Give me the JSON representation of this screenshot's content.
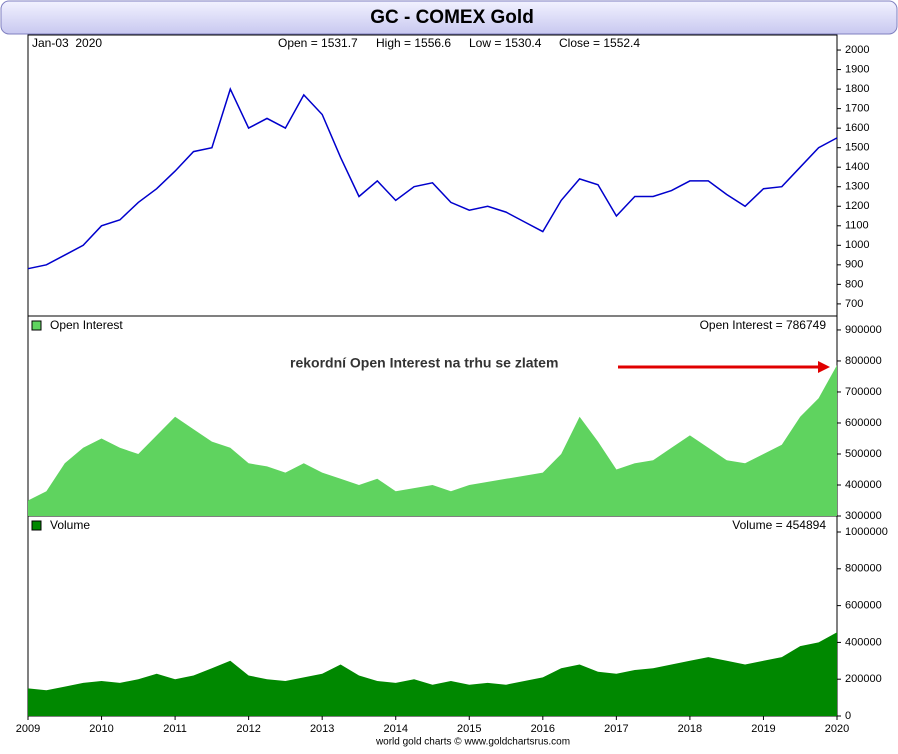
{
  "chart_data": [
    {
      "type": "line",
      "title": "GC - COMEX Gold",
      "info": [
        "Jan-03  2020",
        "Open = 1531.7",
        "High = 1556.6",
        "Low = 1530.4",
        "Close = 1552.4"
      ],
      "x": [
        2009,
        2009.25,
        2009.5,
        2009.75,
        2010,
        2010.25,
        2010.5,
        2010.75,
        2011,
        2011.25,
        2011.5,
        2011.75,
        2012,
        2012.25,
        2012.5,
        2012.75,
        2013,
        2013.25,
        2013.5,
        2013.75,
        2014,
        2014.25,
        2014.5,
        2014.75,
        2015,
        2015.25,
        2015.5,
        2015.75,
        2016,
        2016.25,
        2016.5,
        2016.75,
        2017,
        2017.25,
        2017.5,
        2017.75,
        2018,
        2018.25,
        2018.5,
        2018.75,
        2019,
        2019.25,
        2019.5,
        2019.75,
        2020
      ],
      "series": [
        {
          "name": "Gold",
          "color": "#0000cc",
          "values": [
            880,
            900,
            950,
            1000,
            1100,
            1130,
            1220,
            1290,
            1380,
            1480,
            1500,
            1800,
            1600,
            1650,
            1600,
            1770,
            1670,
            1450,
            1250,
            1330,
            1230,
            1300,
            1320,
            1220,
            1180,
            1200,
            1170,
            1120,
            1070,
            1230,
            1340,
            1310,
            1150,
            1250,
            1250,
            1280,
            1330,
            1330,
            1260,
            1200,
            1290,
            1300,
            1400,
            1500,
            1550
          ]
        }
      ],
      "xlim": [
        2009,
        2020
      ],
      "ylim": [
        638,
        2077
      ],
      "yticks": [
        700,
        800,
        900,
        1000,
        1100,
        1200,
        1300,
        1400,
        1500,
        1600,
        1700,
        1800,
        1900,
        2000
      ]
    },
    {
      "type": "area",
      "readout": "Open Interest = 786749",
      "annotation": "rekordní Open Interest na trhu se zlatem",
      "x": [
        2009,
        2009.25,
        2009.5,
        2009.75,
        2010,
        2010.25,
        2010.5,
        2010.75,
        2011,
        2011.25,
        2011.5,
        2011.75,
        2012,
        2012.25,
        2012.5,
        2012.75,
        2013,
        2013.25,
        2013.5,
        2013.75,
        2014,
        2014.25,
        2014.5,
        2014.75,
        2015,
        2015.25,
        2015.5,
        2015.75,
        2016,
        2016.25,
        2016.5,
        2016.75,
        2017,
        2017.25,
        2017.5,
        2017.75,
        2018,
        2018.25,
        2018.5,
        2018.75,
        2019,
        2019.25,
        2019.5,
        2019.75,
        2020
      ],
      "series": [
        {
          "name": "Open Interest",
          "color": "#5fd35f",
          "values": [
            350000,
            380000,
            470000,
            520000,
            550000,
            520000,
            500000,
            560000,
            620000,
            580000,
            540000,
            520000,
            470000,
            460000,
            440000,
            470000,
            440000,
            420000,
            400000,
            420000,
            380000,
            390000,
            400000,
            380000,
            400000,
            410000,
            420000,
            430000,
            440000,
            500000,
            620000,
            540000,
            450000,
            470000,
            480000,
            520000,
            560000,
            520000,
            480000,
            470000,
            500000,
            530000,
            620000,
            680000,
            786749
          ]
        }
      ],
      "xlim": [
        2009,
        2020
      ],
      "ylim": [
        300000,
        945000
      ],
      "yticks": [
        300000,
        400000,
        500000,
        600000,
        700000,
        800000,
        900000
      ]
    },
    {
      "type": "area",
      "readout": "Volume = 454894",
      "source": "world gold charts © www.goldchartsrus.com",
      "x": [
        2009,
        2009.25,
        2009.5,
        2009.75,
        2010,
        2010.25,
        2010.5,
        2010.75,
        2011,
        2011.25,
        2011.5,
        2011.75,
        2012,
        2012.25,
        2012.5,
        2012.75,
        2013,
        2013.25,
        2013.5,
        2013.75,
        2014,
        2014.25,
        2014.5,
        2014.75,
        2015,
        2015.25,
        2015.5,
        2015.75,
        2016,
        2016.25,
        2016.5,
        2016.75,
        2017,
        2017.25,
        2017.5,
        2017.75,
        2018,
        2018.25,
        2018.5,
        2018.75,
        2019,
        2019.25,
        2019.5,
        2019.75,
        2020
      ],
      "series": [
        {
          "name": "Volume",
          "color": "#008800",
          "values": [
            150000,
            140000,
            160000,
            180000,
            190000,
            180000,
            200000,
            230000,
            200000,
            220000,
            260000,
            300000,
            220000,
            200000,
            190000,
            210000,
            230000,
            280000,
            220000,
            190000,
            180000,
            200000,
            170000,
            190000,
            170000,
            180000,
            170000,
            190000,
            210000,
            260000,
            280000,
            240000,
            230000,
            250000,
            260000,
            280000,
            300000,
            320000,
            300000,
            280000,
            300000,
            320000,
            380000,
            400000,
            454894
          ]
        }
      ],
      "xlim": [
        2009,
        2020
      ],
      "ylim": [
        0,
        1087000
      ],
      "xticks": [
        2009,
        2010,
        2011,
        2012,
        2013,
        2014,
        2015,
        2016,
        2017,
        2018,
        2019,
        2020
      ],
      "yticks": [
        0,
        200000,
        400000,
        600000,
        800000,
        1000000
      ]
    }
  ]
}
